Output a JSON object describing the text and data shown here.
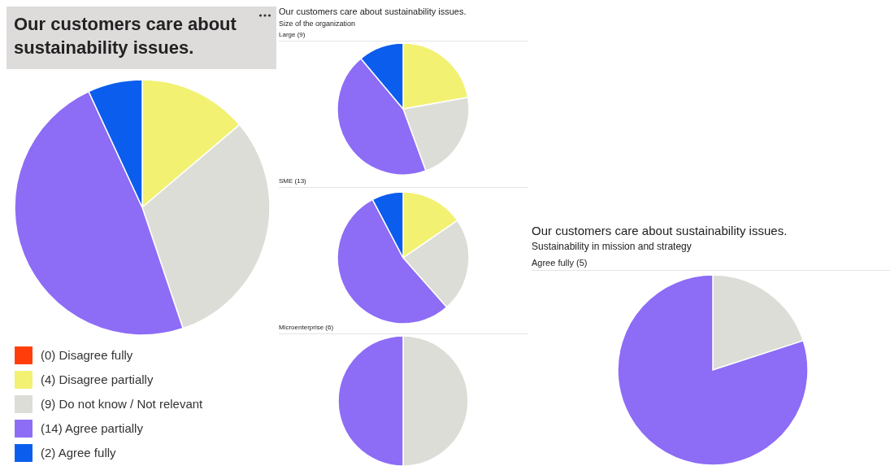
{
  "chart_data": [
    {
      "type": "pie",
      "title": "Our customers care about sustainability issues.",
      "categories": [
        "(0) Disagree fully",
        "(4) Disagree partially",
        "(9) Do not know / Not relevant",
        "(14) Agree partially",
        "(2) Agree fully"
      ],
      "values": [
        0,
        4,
        9,
        14,
        2
      ],
      "colors": [
        "#ff3d0a",
        "#f2f172",
        "#dcddd6",
        "#8d6cf6",
        "#0b5ded"
      ],
      "legend": "bottom"
    },
    {
      "type": "pie",
      "title": "Our customers care about sustainability issues.",
      "subtitle": "Size of the organization",
      "annotations": [
        "Large (9)"
      ],
      "categories": [
        null,
        null,
        null,
        null
      ],
      "values": [
        22.2,
        22.2,
        44.5,
        11.1
      ],
      "colors": [
        "#f2f172",
        "#dcddd6",
        "#8d6cf6",
        "#0b5ded"
      ]
    },
    {
      "type": "pie",
      "annotations": [
        "SME (13)"
      ],
      "categories": [
        null,
        null,
        null,
        null
      ],
      "values": [
        15.4,
        23.1,
        53.8,
        7.7
      ],
      "colors": [
        "#f2f172",
        "#dcddd6",
        "#8d6cf6",
        "#0b5ded"
      ]
    },
    {
      "type": "pie",
      "annotations": [
        "Microenterprise (6)"
      ],
      "categories": [
        null,
        null
      ],
      "values": [
        50,
        50
      ],
      "colors": [
        "#dcddd6",
        "#8d6cf6"
      ]
    },
    {
      "type": "pie",
      "title": "Our customers care about sustainability issues.",
      "subtitle": "Sustainability in mission and strategy",
      "annotations": [
        "Agree fully (5)"
      ],
      "categories": [
        null,
        null
      ],
      "values": [
        20,
        80
      ],
      "colors": [
        "#dcddd6",
        "#8d6cf6"
      ]
    }
  ]
}
